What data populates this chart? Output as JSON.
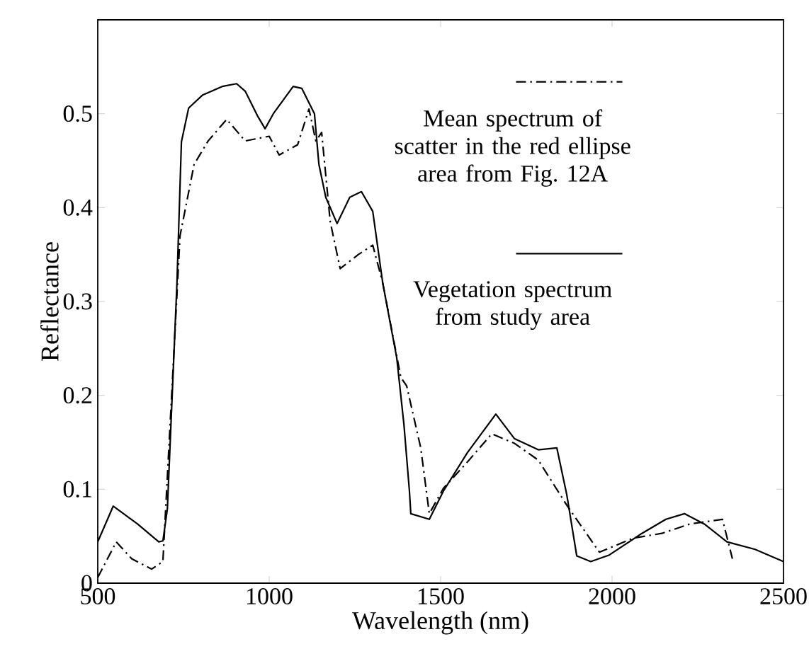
{
  "chart_data": {
    "type": "line",
    "xlabel": "Wavelength (nm)",
    "ylabel": "Reflectance",
    "xlim": [
      500,
      2500
    ],
    "xticks": [
      500,
      1000,
      1500,
      2000,
      2500
    ],
    "ylim": [
      0,
      0.6
    ],
    "yticks": [
      0,
      0.1,
      0.2,
      0.3,
      0.4,
      0.5,
      {
        "value": 0.6,
        "label": null
      }
    ],
    "legend": "top right",
    "grid": false,
    "marker": "none",
    "series": [
      {
        "name": "Mean spectrum of scatter in the red ellipse area from Fig. 12A",
        "color": "#000000",
        "line_style": "dashdot",
        "x": [
          500,
          554,
          599,
          657,
          690,
          711,
          740,
          781,
          822,
          876,
          930,
          1000,
          1029,
          1083,
          1116,
          1136,
          1153,
          1178,
          1207,
          1260,
          1302,
          1331,
          1384,
          1401,
          1442,
          1467,
          1508,
          1578,
          1649,
          1715,
          1785,
          1868,
          1963,
          2062,
          2145,
          2227,
          2322,
          2351
        ],
        "values": [
          0.006,
          0.044,
          0.026,
          0.015,
          0.023,
          0.169,
          0.37,
          0.446,
          0.471,
          0.494,
          0.471,
          0.476,
          0.456,
          0.467,
          0.505,
          0.471,
          0.48,
          0.385,
          0.335,
          0.35,
          0.36,
          0.32,
          0.219,
          0.21,
          0.144,
          0.074,
          0.101,
          0.129,
          0.159,
          0.149,
          0.131,
          0.083,
          0.033,
          0.048,
          0.053,
          0.063,
          0.068,
          0.026
        ]
      },
      {
        "name": "Vegetation spectrum from study area",
        "color": "#000000",
        "line_style": "solid",
        "x": [
          500,
          545,
          616,
          678,
          690,
          703,
          731,
          744,
          765,
          806,
          863,
          905,
          930,
          967,
          988,
          1012,
          1070,
          1095,
          1132,
          1145,
          1165,
          1198,
          1235,
          1269,
          1302,
          1331,
          1372,
          1393,
          1409,
          1413,
          1467,
          1508,
          1578,
          1661,
          1715,
          1785,
          1839,
          1868,
          1897,
          1938,
          1992,
          2087,
          2157,
          2211,
          2269,
          2335,
          2417,
          2500
        ],
        "values": [
          0.044,
          0.082,
          0.063,
          0.044,
          0.045,
          0.079,
          0.32,
          0.47,
          0.506,
          0.52,
          0.529,
          0.532,
          0.524,
          0.497,
          0.484,
          0.5,
          0.529,
          0.527,
          0.5,
          0.446,
          0.411,
          0.383,
          0.411,
          0.417,
          0.396,
          0.32,
          0.24,
          0.169,
          0.098,
          0.074,
          0.068,
          0.098,
          0.139,
          0.18,
          0.154,
          0.142,
          0.144,
          0.094,
          0.029,
          0.023,
          0.03,
          0.053,
          0.068,
          0.074,
          0.063,
          0.044,
          0.036,
          0.023
        ]
      }
    ]
  }
}
